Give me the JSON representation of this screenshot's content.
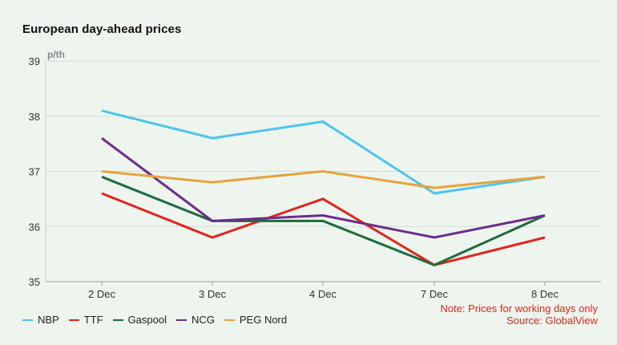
{
  "chart_data": {
    "type": "line",
    "title": "European day-ahead prices",
    "ylabel": "p/th",
    "xlabel": "",
    "categories": [
      "2 Dec",
      "3 Dec",
      "4 Dec",
      "7 Dec",
      "8 Dec"
    ],
    "ylim": [
      35,
      39
    ],
    "yticks": [
      35,
      36,
      37,
      38,
      39
    ],
    "grid": true,
    "legend_position": "bottom-left",
    "series": [
      {
        "name": "NBP",
        "color": "#4cc4ee",
        "values": [
          38.1,
          37.6,
          37.9,
          36.6,
          36.9
        ]
      },
      {
        "name": "TTF",
        "color": "#e3241b",
        "values": [
          36.6,
          35.8,
          36.5,
          35.3,
          35.8
        ]
      },
      {
        "name": "Gaspool",
        "color": "#1d6b3c",
        "values": [
          36.9,
          36.1,
          36.1,
          35.3,
          36.2
        ]
      },
      {
        "name": "NCG",
        "color": "#6b2d8b",
        "values": [
          37.6,
          36.1,
          36.2,
          35.8,
          36.2
        ]
      },
      {
        "name": "PEG Nord",
        "color": "#e8a23c",
        "values": [
          37.0,
          36.8,
          37.0,
          36.7,
          36.9
        ]
      }
    ],
    "annotations": [
      "Note: Prices for working days only",
      "Source: GlobalView"
    ]
  },
  "style": {
    "background": "#edf5ee",
    "grid_color": "#d2ddd4",
    "axis_text_color": "#333333",
    "unit_label_color": "#888888",
    "note_color": "#e3241b"
  }
}
